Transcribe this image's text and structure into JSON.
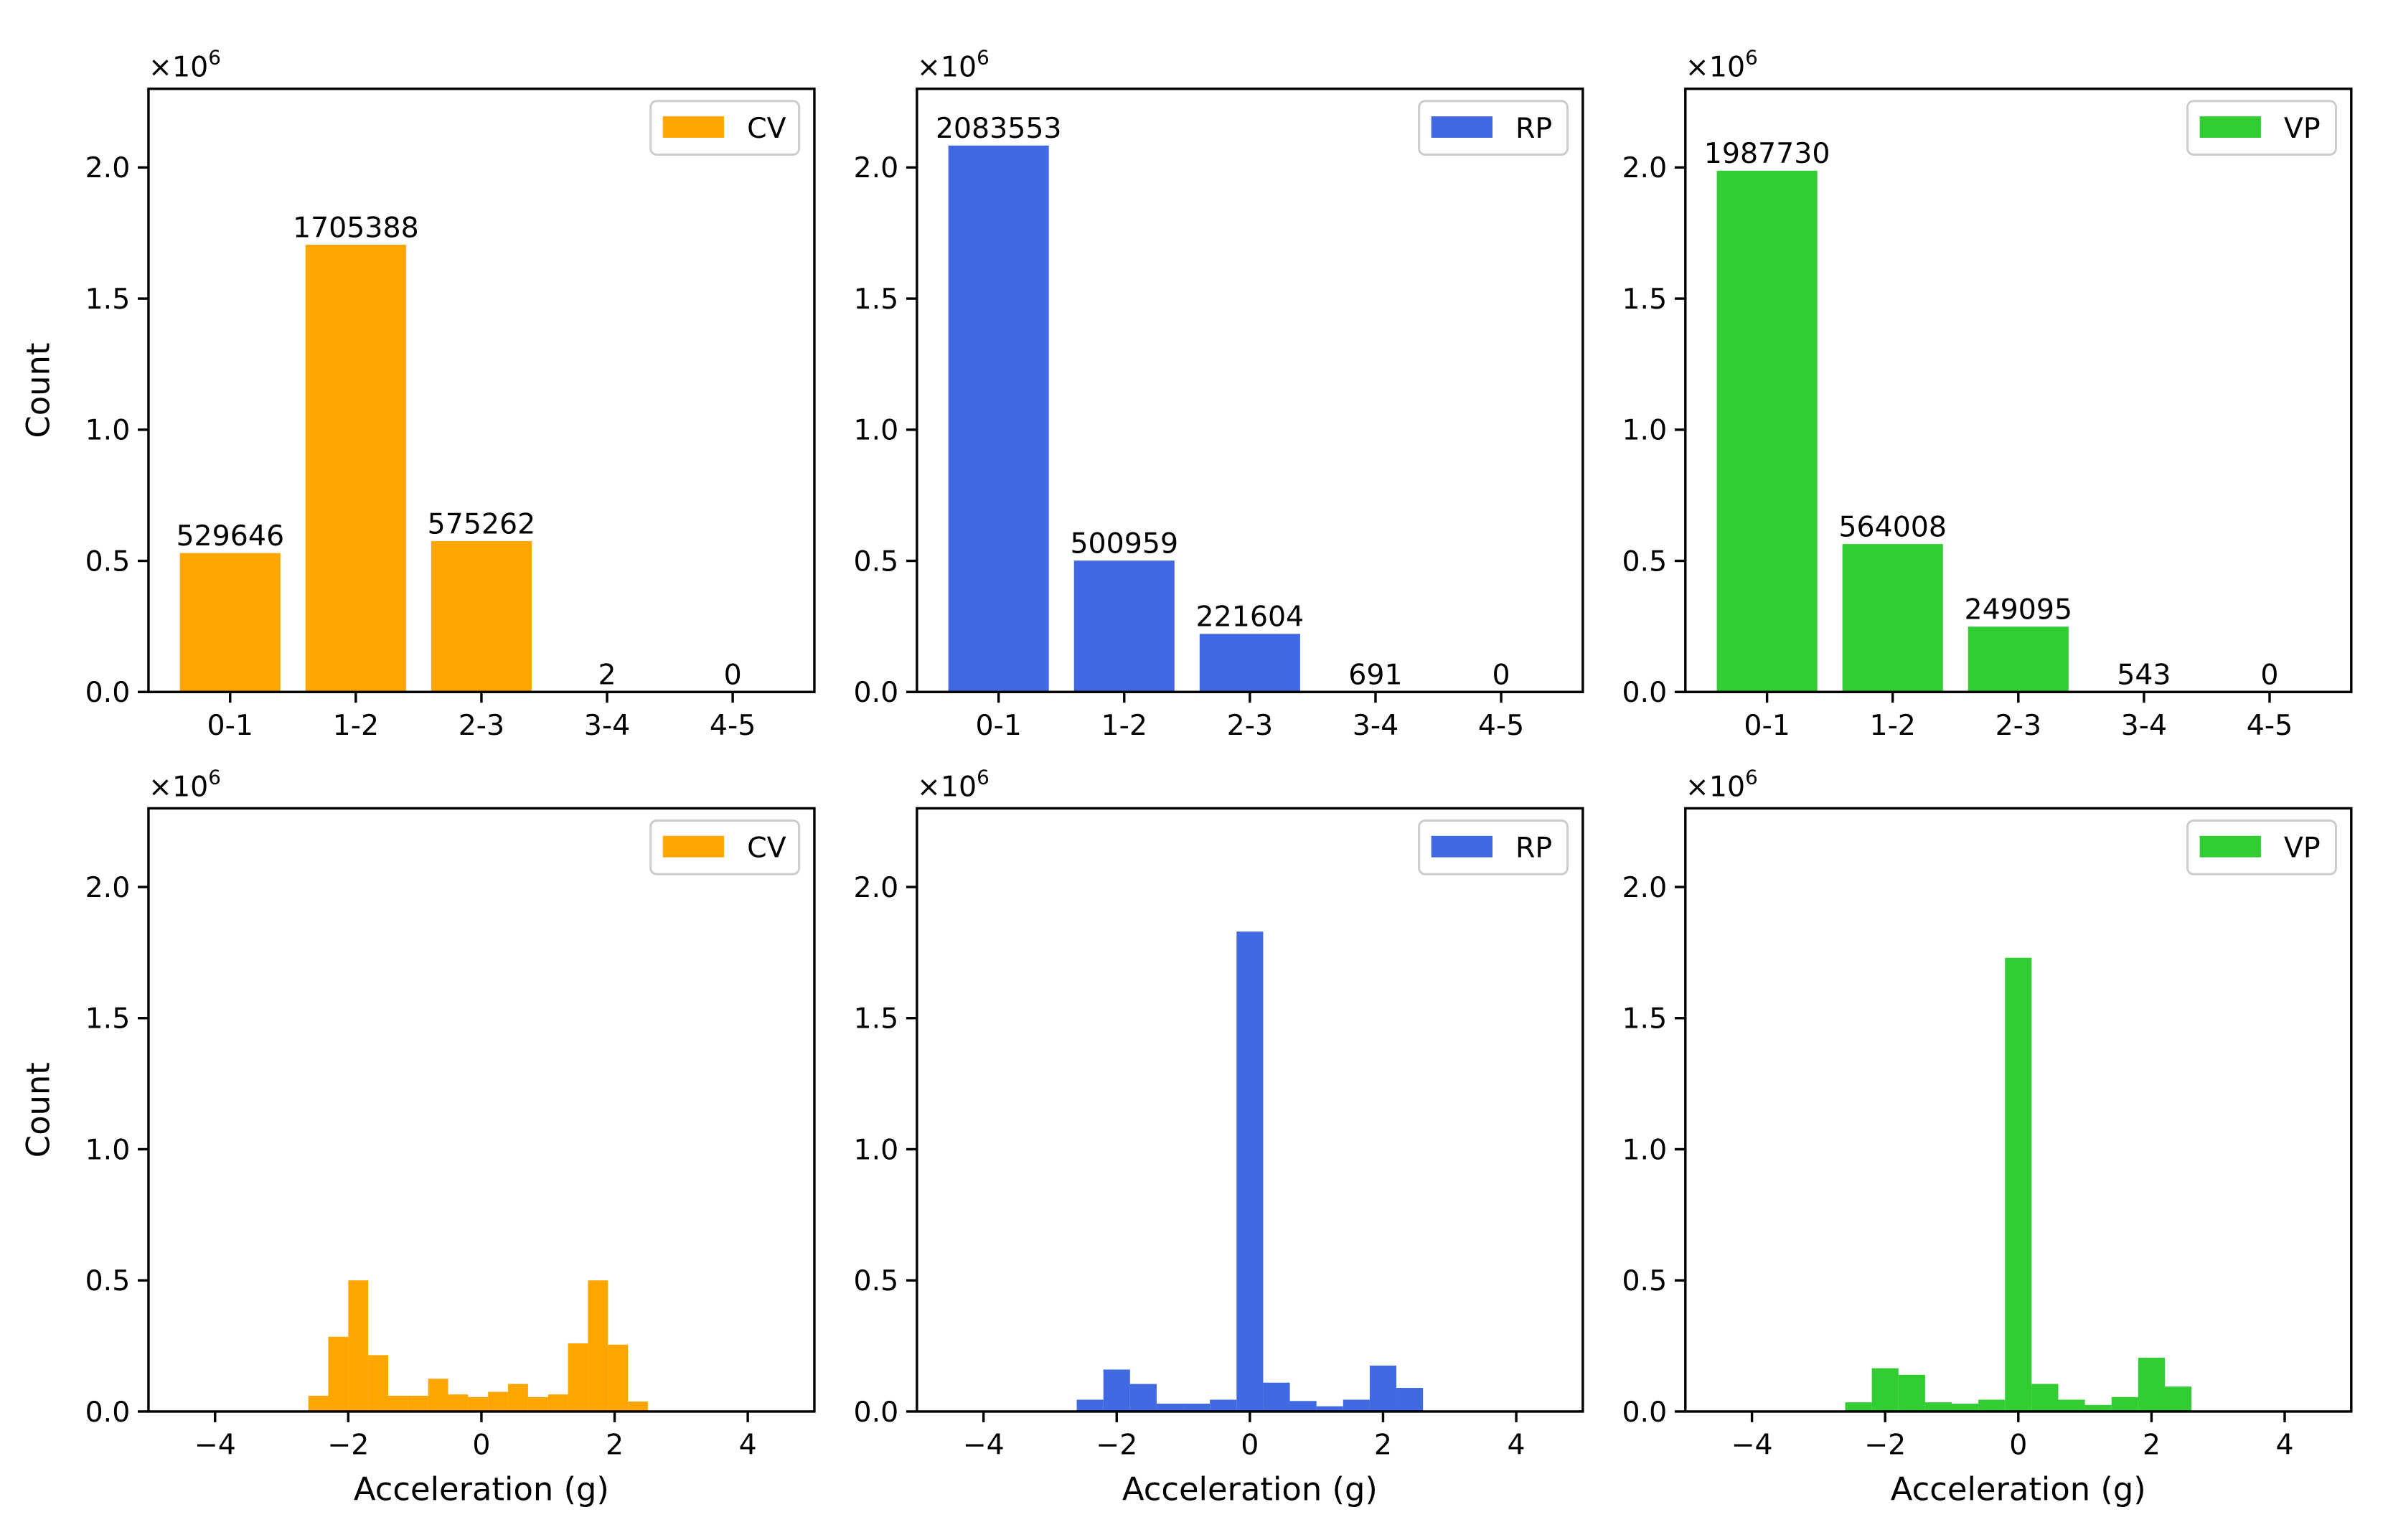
{
  "chart_data": [
    {
      "id": "cv-range",
      "type": "bar",
      "categories": [
        "0-1",
        "1-2",
        "2-3",
        "3-4",
        "4-5"
      ],
      "values": [
        529646,
        1705388,
        575262,
        2,
        0
      ],
      "value_labels": [
        "529646",
        "1705388",
        "575262",
        "2",
        "0"
      ],
      "series": [
        {
          "name": "CV",
          "color": "#FFA500"
        }
      ],
      "xlabel": "",
      "ylabel": "Count",
      "ylim": [
        0,
        2300000
      ],
      "y_ticks": [
        0,
        0.5,
        1.0,
        1.5,
        2.0
      ],
      "y_tick_labels": [
        "0.0",
        "0.5",
        "1.0",
        "1.5",
        "2.0"
      ],
      "multiplier_label": "×10",
      "multiplier_exponent": "6",
      "legend_position": "top-right",
      "grid": false
    },
    {
      "id": "rp-range",
      "type": "bar",
      "categories": [
        "0-1",
        "1-2",
        "2-3",
        "3-4",
        "4-5"
      ],
      "values": [
        2083553,
        500959,
        221604,
        691,
        0
      ],
      "value_labels": [
        "2083553",
        "500959",
        "221604",
        "691",
        "0"
      ],
      "series": [
        {
          "name": "RP",
          "color": "#4169E1"
        }
      ],
      "xlabel": "",
      "ylabel": "",
      "ylim": [
        0,
        2300000
      ],
      "y_ticks": [
        0,
        0.5,
        1.0,
        1.5,
        2.0
      ],
      "y_tick_labels": [
        "0.0",
        "0.5",
        "1.0",
        "1.5",
        "2.0"
      ],
      "multiplier_label": "×10",
      "multiplier_exponent": "6",
      "legend_position": "top-right",
      "grid": false
    },
    {
      "id": "vp-range",
      "type": "bar",
      "categories": [
        "0-1",
        "1-2",
        "2-3",
        "3-4",
        "4-5"
      ],
      "values": [
        1987730,
        564008,
        249095,
        543,
        0
      ],
      "value_labels": [
        "1987730",
        "564008",
        "249095",
        "543",
        "0"
      ],
      "series": [
        {
          "name": "VP",
          "color": "#32CD32"
        }
      ],
      "xlabel": "",
      "ylabel": "",
      "ylim": [
        0,
        2300000
      ],
      "y_ticks": [
        0,
        0.5,
        1.0,
        1.5,
        2.0
      ],
      "y_tick_labels": [
        "0.0",
        "0.5",
        "1.0",
        "1.5",
        "2.0"
      ],
      "multiplier_label": "×10",
      "multiplier_exponent": "6",
      "legend_position": "top-right",
      "grid": false
    },
    {
      "id": "cv-hist",
      "type": "bar",
      "x_bin_edges": [
        -2.6,
        -2.3,
        -2.0,
        -1.7,
        -1.4,
        -1.1,
        -0.8,
        -0.5,
        -0.2,
        0.1,
        0.4,
        0.7,
        1.0,
        1.3,
        1.6,
        1.9,
        2.2,
        2.5
      ],
      "values": [
        60000,
        285000,
        500000,
        215000,
        60000,
        60000,
        125000,
        65000,
        55000,
        75000,
        105000,
        55000,
        65000,
        260000,
        500000,
        255000,
        38000
      ],
      "series": [
        {
          "name": "CV",
          "color": "#FFA500"
        }
      ],
      "xlabel": "Acceleration (g)",
      "ylabel": "Count",
      "xlim": [
        -5,
        5
      ],
      "x_ticks": [
        -4,
        -2,
        0,
        2,
        4
      ],
      "x_tick_labels": [
        "−4",
        "−2",
        "0",
        "2",
        "4"
      ],
      "ylim": [
        0,
        2300000
      ],
      "y_ticks": [
        0,
        0.5,
        1.0,
        1.5,
        2.0
      ],
      "y_tick_labels": [
        "0.0",
        "0.5",
        "1.0",
        "1.5",
        "2.0"
      ],
      "multiplier_label": "×10",
      "multiplier_exponent": "6",
      "legend_position": "top-right",
      "grid": false
    },
    {
      "id": "rp-hist",
      "type": "bar",
      "x_bin_edges": [
        -2.6,
        -2.2,
        -1.8,
        -1.4,
        -1.0,
        -0.6,
        -0.2,
        0.2,
        0.6,
        1.0,
        1.4,
        1.8,
        2.2,
        2.6
      ],
      "values": [
        45000,
        160000,
        105000,
        30000,
        30000,
        45000,
        1830000,
        110000,
        40000,
        20000,
        45000,
        175000,
        90000,
        15000
      ],
      "series": [
        {
          "name": "RP",
          "color": "#4169E1"
        }
      ],
      "xlabel": "Acceleration (g)",
      "ylabel": "",
      "xlim": [
        -5,
        5
      ],
      "x_ticks": [
        -4,
        -2,
        0,
        2,
        4
      ],
      "x_tick_labels": [
        "−4",
        "−2",
        "0",
        "2",
        "4"
      ],
      "ylim": [
        0,
        2300000
      ],
      "y_ticks": [
        0,
        0.5,
        1.0,
        1.5,
        2.0
      ],
      "y_tick_labels": [
        "0.0",
        "0.5",
        "1.0",
        "1.5",
        "2.0"
      ],
      "multiplier_label": "×10",
      "multiplier_exponent": "6",
      "legend_position": "top-right",
      "grid": false
    },
    {
      "id": "vp-hist",
      "type": "bar",
      "x_bin_edges": [
        -2.6,
        -2.2,
        -1.8,
        -1.4,
        -1.0,
        -0.6,
        -0.2,
        0.2,
        0.6,
        1.0,
        1.4,
        1.8,
        2.2,
        2.6
      ],
      "values": [
        35000,
        165000,
        140000,
        35000,
        30000,
        45000,
        1730000,
        105000,
        45000,
        25000,
        55000,
        205000,
        95000,
        12000
      ],
      "series": [
        {
          "name": "VP",
          "color": "#32CD32"
        }
      ],
      "xlabel": "Acceleration (g)",
      "ylabel": "",
      "xlim": [
        -5,
        5
      ],
      "x_ticks": [
        -4,
        -2,
        0,
        2,
        4
      ],
      "x_tick_labels": [
        "−4",
        "−2",
        "0",
        "2",
        "4"
      ],
      "ylim": [
        0,
        2300000
      ],
      "y_ticks": [
        0,
        0.5,
        1.0,
        1.5,
        2.0
      ],
      "y_tick_labels": [
        "0.0",
        "0.5",
        "1.0",
        "1.5",
        "2.0"
      ],
      "multiplier_label": "×10",
      "multiplier_exponent": "6",
      "legend_position": "top-right",
      "grid": false
    }
  ]
}
